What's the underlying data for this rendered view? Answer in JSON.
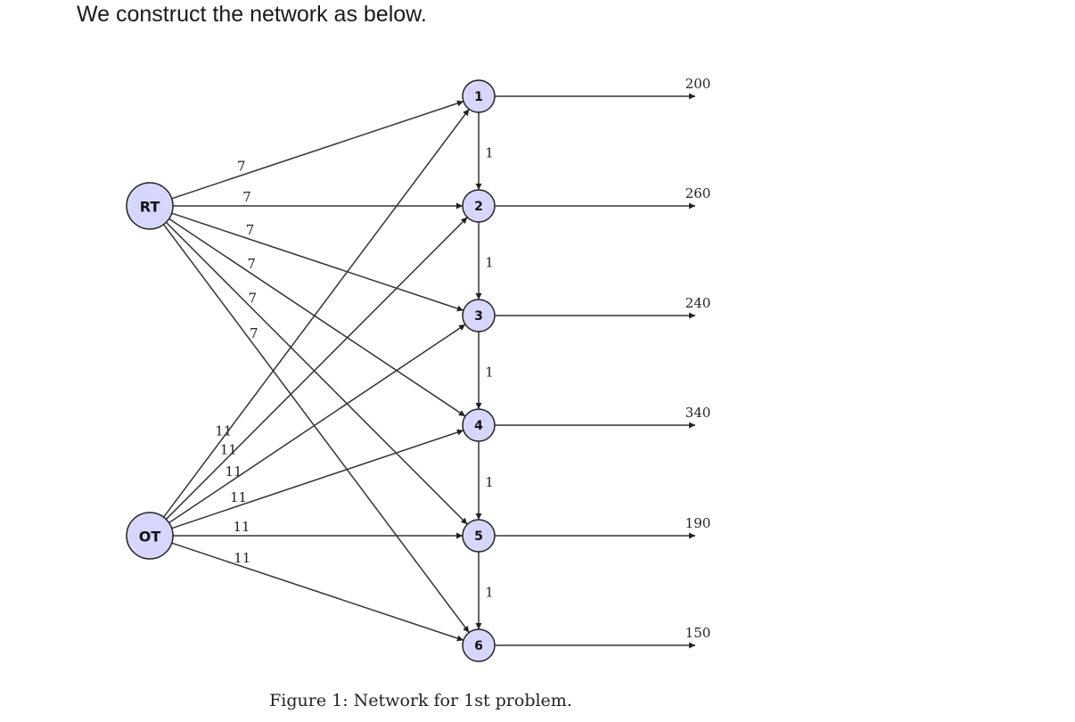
{
  "intro": "We construct the network as below.",
  "caption": "Figure 1: Network for 1st problem.",
  "colors": {
    "node_fill": "#d6d6ff",
    "stroke": "#333333"
  },
  "sources": [
    {
      "id": "RT",
      "label": "RT",
      "weight": "7"
    },
    {
      "id": "OT",
      "label": "OT",
      "weight": "11"
    }
  ],
  "periods": [
    {
      "id": "1",
      "label": "1",
      "demand": "200"
    },
    {
      "id": "2",
      "label": "2",
      "demand": "260"
    },
    {
      "id": "3",
      "label": "3",
      "demand": "240"
    },
    {
      "id": "4",
      "label": "4",
      "demand": "340"
    },
    {
      "id": "5",
      "label": "5",
      "demand": "190"
    },
    {
      "id": "6",
      "label": "6",
      "demand": "150"
    }
  ],
  "chain_weight": "1"
}
